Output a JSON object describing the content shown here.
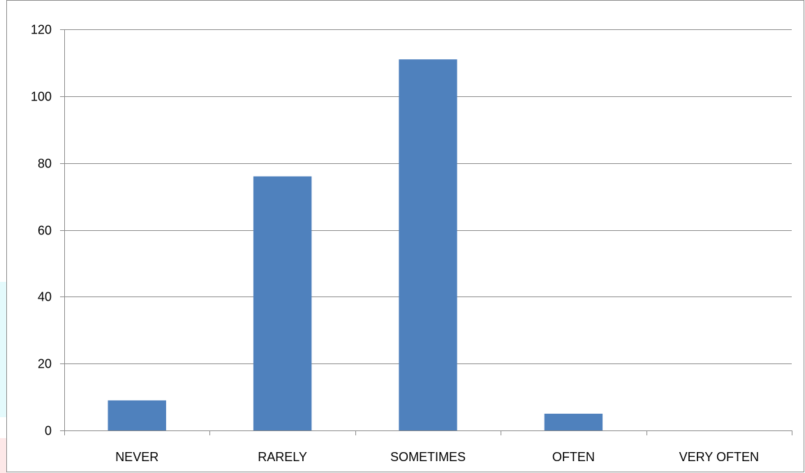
{
  "chart_data": {
    "type": "bar",
    "title": "",
    "xlabel": "",
    "ylabel": "",
    "categories": [
      "NEVER",
      "RARELY",
      "SOMETIMES",
      "OFTEN",
      "VERY OFTEN"
    ],
    "values": [
      9,
      76,
      111,
      5,
      0
    ],
    "ylim": [
      0,
      120
    ],
    "yticks": [
      0,
      20,
      40,
      60,
      80,
      100,
      120
    ],
    "grid": true,
    "legend": "none",
    "bar_color": "#4f81bd"
  }
}
